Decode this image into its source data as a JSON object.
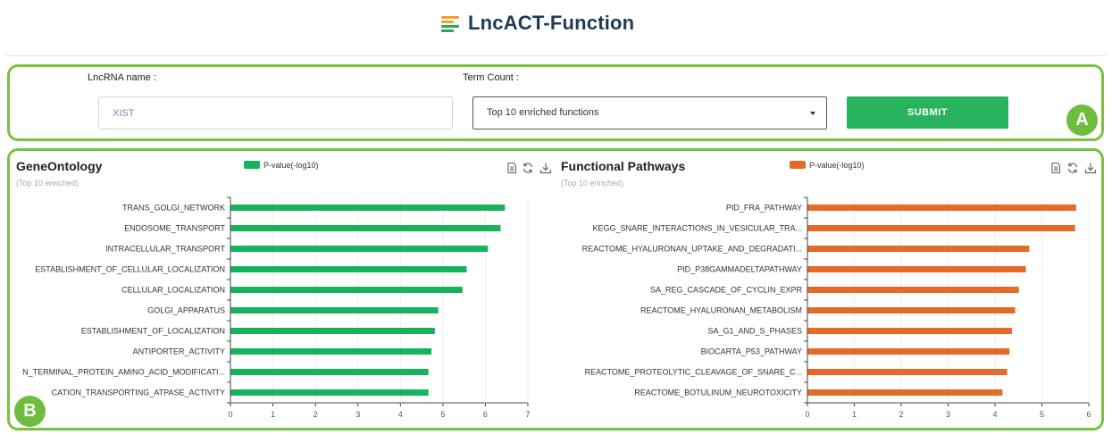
{
  "header": {
    "title": "LncACT-Function",
    "logo_icon": "list-bars-icon"
  },
  "panel_a": {
    "badge": "A",
    "lncrna_label": "LncRNA name :",
    "lncrna_value": "XIST",
    "term_label": "Term Count :",
    "term_value": "Top 10 enriched functions",
    "submit_label": "SUBMIT"
  },
  "panel_b": {
    "badge": "B"
  },
  "colors": {
    "go_bar": "#16b35d",
    "pathway_bar": "#e36a28",
    "accent_border": "#7cc142",
    "submit": "#27b35e"
  },
  "left_chart": {
    "title": "GeneOntology",
    "subtitle": "(Top 10 enriched)",
    "legend": "P-value(-log10)"
  },
  "right_chart": {
    "title": "Functional Pathways",
    "subtitle": "(Top 10 enriched)",
    "legend": "P-value(-log10)"
  },
  "chart_data": [
    {
      "type": "bar",
      "orientation": "horizontal",
      "title": "GeneOntology",
      "subtitle": "(Top 10 enriched)",
      "categories": [
        "TRANS_GOLGI_NETWORK",
        "ENDOSOME_TRANSPORT",
        "INTRACELLULAR_TRANSPORT",
        "ESTABLISHMENT_OF_CELLULAR_LOCALIZATION",
        "CELLULAR_LOCALIZATION",
        "GOLGI_APPARATUS",
        "ESTABLISHMENT_OF_LOCALIZATION",
        "ANTIPORTER_ACTIVITY",
        "N_TERMINAL_PROTEIN_AMINO_ACID_MODIFICATI...",
        "CATION_TRANSPORTING_ATPASE_ACTIVITY"
      ],
      "series": [
        {
          "name": "P-value(-log10)",
          "values": [
            6.45,
            6.35,
            6.05,
            5.55,
            5.45,
            4.88,
            4.8,
            4.72,
            4.65,
            4.65
          ]
        }
      ],
      "xlim": [
        0,
        7
      ],
      "ticks": [
        "0",
        "1",
        "2",
        "3",
        "4",
        "5",
        "6",
        "7"
      ],
      "legend": "top",
      "grid": false
    },
    {
      "type": "bar",
      "orientation": "horizontal",
      "title": "Functional Pathways",
      "subtitle": "(Top 10 enriched)",
      "categories": [
        "PID_FRA_PATHWAY",
        "KEGG_SNARE_INTERACTIONS_IN_VESICULAR_TRA...",
        "REACTOME_HYALURONAN_UPTAKE_AND_DEGRADATI...",
        "PID_P38GAMMADELTAPATHWAY",
        "SA_REG_CASCADE_OF_CYCLIN_EXPR",
        "REACTOME_HYALURONAN_METABOLISM",
        "SA_G1_AND_S_PHASES",
        "BIOCARTA_P53_PATHWAY",
        "REACTOME_PROTEOLYTIC_CLEAVAGE_OF_SNARE_C...",
        "REACTOME_BOTULINUM_NEUROTOXICITY"
      ],
      "series": [
        {
          "name": "P-value(-log10)",
          "values": [
            5.72,
            5.7,
            4.72,
            4.65,
            4.5,
            4.42,
            4.35,
            4.3,
            4.25,
            4.15
          ]
        }
      ],
      "xlim": [
        0,
        6
      ],
      "ticks": [
        "0",
        "1",
        "2",
        "3",
        "4",
        "5",
        "6"
      ],
      "legend": "top",
      "grid": false
    }
  ]
}
